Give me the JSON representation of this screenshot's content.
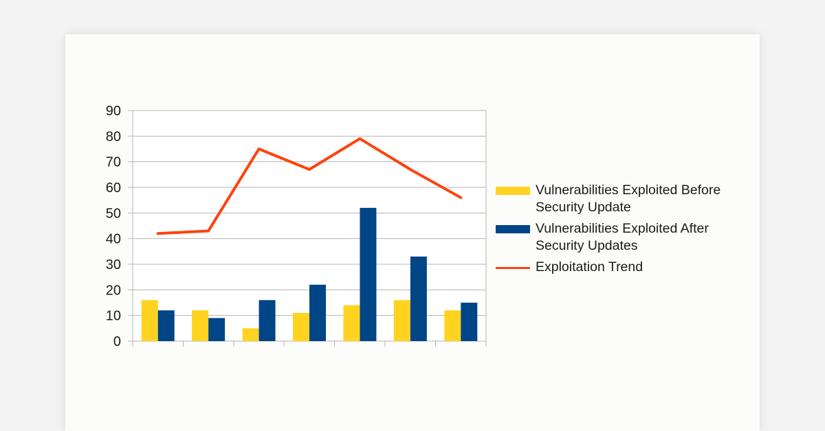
{
  "chart_data": {
    "type": "bar",
    "categories": [
      "",
      "",
      "",
      "",
      "",
      "",
      ""
    ],
    "ylim": [
      0,
      90
    ],
    "yticks": [
      0,
      10,
      20,
      30,
      40,
      50,
      60,
      70,
      80,
      90
    ],
    "grid": true,
    "legend_position": "right",
    "series": [
      {
        "name": "Vulnerabilities Exploited Before Security Update",
        "type": "bar",
        "color": "#ffd320",
        "values": [
          16,
          12,
          5,
          11,
          14,
          16,
          12
        ]
      },
      {
        "name": "Vulnerabilities Exploited After Security Updates",
        "type": "bar",
        "color": "#004586",
        "values": [
          12,
          9,
          16,
          22,
          52,
          33,
          15
        ]
      },
      {
        "name": "Exploitation Trend",
        "type": "line",
        "color": "#ff420e",
        "values": [
          42,
          43,
          75,
          67,
          79,
          67,
          56
        ]
      }
    ]
  }
}
